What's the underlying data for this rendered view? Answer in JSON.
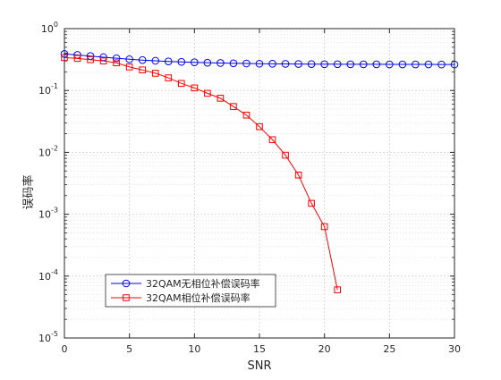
{
  "chart_data": {
    "type": "line",
    "title": "",
    "xlabel": "SNR",
    "ylabel": "误码率",
    "xlim": [
      0,
      30
    ],
    "ylim": [
      1e-05,
      1
    ],
    "yscale": "log",
    "grid": true,
    "minor_grid": true,
    "legend_position": "bottom-left",
    "x_ticks": [
      0,
      5,
      10,
      15,
      20,
      25,
      30
    ],
    "y_ticks": [
      {
        "value": 1,
        "base": "10",
        "exp": "0"
      },
      {
        "value": 0.1,
        "base": "10",
        "exp": "-1"
      },
      {
        "value": 0.01,
        "base": "10",
        "exp": "-2"
      },
      {
        "value": 0.001,
        "base": "10",
        "exp": "-3"
      },
      {
        "value": 0.0001,
        "base": "10",
        "exp": "-4"
      },
      {
        "value": 1e-05,
        "base": "10",
        "exp": "-5"
      }
    ],
    "series": [
      {
        "name": "32QAM无相位补偿误码率",
        "color": "#0000ff",
        "marker": "circle",
        "x": [
          0,
          1,
          2,
          3,
          4,
          5,
          6,
          7,
          8,
          9,
          10,
          11,
          12,
          13,
          14,
          15,
          16,
          17,
          18,
          19,
          20,
          21,
          22,
          23,
          24,
          25,
          26,
          27,
          28,
          29,
          30
        ],
        "y": [
          0.39,
          0.375,
          0.36,
          0.345,
          0.332,
          0.32,
          0.31,
          0.302,
          0.295,
          0.29,
          0.285,
          0.281,
          0.278,
          0.275,
          0.273,
          0.271,
          0.27,
          0.269,
          0.268,
          0.267,
          0.266,
          0.266,
          0.265,
          0.265,
          0.265,
          0.264,
          0.264,
          0.264,
          0.264,
          0.263,
          0.263
        ]
      },
      {
        "name": "32QAM相位补偿误码率",
        "color": "#ff0000",
        "marker": "square",
        "x": [
          0,
          1,
          2,
          3,
          4,
          5,
          6,
          7,
          8,
          9,
          10,
          11,
          12,
          13,
          14,
          15,
          16,
          17,
          18,
          19,
          20,
          21
        ],
        "y": [
          0.34,
          0.33,
          0.315,
          0.3,
          0.28,
          0.24,
          0.215,
          0.19,
          0.16,
          0.13,
          0.11,
          0.09,
          0.075,
          0.055,
          0.04,
          0.026,
          0.016,
          0.009,
          0.0043,
          0.0015,
          0.00063,
          6e-05
        ]
      }
    ]
  }
}
